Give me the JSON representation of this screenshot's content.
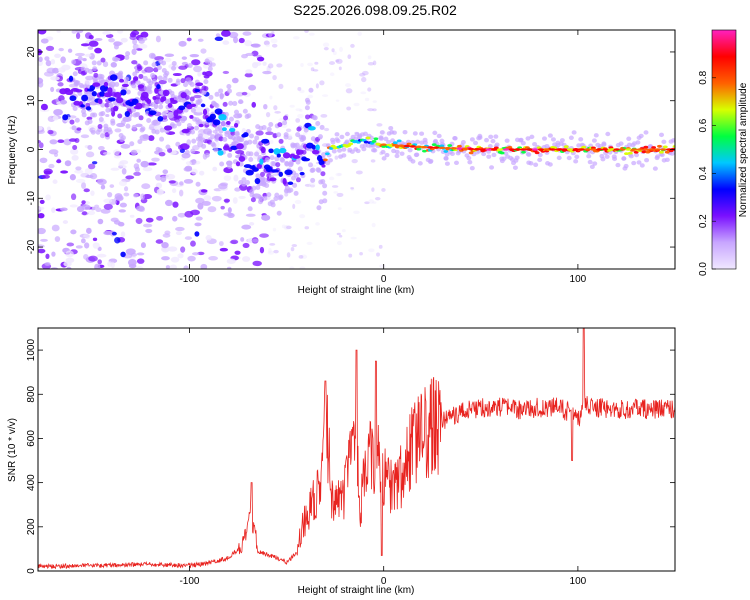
{
  "title": "S225.2026.098.09.25.R02",
  "chart_data": [
    {
      "type": "heatmap",
      "xlabel": "Height of straight line (km)",
      "ylabel": "Frequency (Hz)",
      "xlim": [
        -178,
        150
      ],
      "ylim": [
        -24.5,
        24.5
      ],
      "x_ticks": [
        "-100",
        "0",
        "100"
      ],
      "y_ticks": [
        "-20",
        "-10",
        "0",
        "10",
        "20"
      ],
      "colorbar": {
        "label": "Normalized spectral amplitude",
        "range": [
          0,
          1
        ],
        "ticks": [
          "0.0",
          "0.2",
          "0.4",
          "0.6",
          "0.8"
        ],
        "colors": [
          "#f0e8ff",
          "#c8a6ff",
          "#7a10ff",
          "#0000ff",
          "#00c8ff",
          "#00ff40",
          "#d8ff00",
          "#ff6000",
          "#ff0000",
          "#ff20c0"
        ]
      },
      "ridge_center_hz": [
        {
          "x": -140,
          "y": 11
        },
        {
          "x": -115,
          "y": 9
        },
        {
          "x": -95,
          "y": 8
        },
        {
          "x": -85,
          "y": 6
        },
        {
          "x": -75,
          "y": 1
        },
        {
          "x": -65,
          "y": -3
        },
        {
          "x": -55,
          "y": -5
        },
        {
          "x": -45,
          "y": -3
        },
        {
          "x": -38,
          "y": 4
        },
        {
          "x": -32,
          "y": -4
        },
        {
          "x": -28,
          "y": 0
        },
        {
          "x": -18,
          "y": 1
        },
        {
          "x": -10,
          "y": 2
        },
        {
          "x": 0,
          "y": 1
        },
        {
          "x": 20,
          "y": 0.5
        },
        {
          "x": 50,
          "y": 0
        },
        {
          "x": 100,
          "y": 0
        },
        {
          "x": 150,
          "y": 0
        }
      ]
    },
    {
      "type": "line",
      "xlabel": "Height of straight line (km)",
      "ylabel": "SNR (10 * v/v)",
      "xlim": [
        -178,
        150
      ],
      "ylim": [
        0,
        1100
      ],
      "x_ticks": [
        "-100",
        "0",
        "100"
      ],
      "y_ticks": [
        "0",
        "200",
        "400",
        "600",
        "800",
        "1000"
      ],
      "series": [
        {
          "color": "#e8231f",
          "envelope": [
            [
              -178,
              20
            ],
            [
              -150,
              25
            ],
            [
              -120,
              30
            ],
            [
              -100,
              25
            ],
            [
              -90,
              35
            ],
            [
              -80,
              60
            ],
            [
              -72,
              120
            ],
            [
              -68,
              280
            ],
            [
              -65,
              90
            ],
            [
              -58,
              70
            ],
            [
              -50,
              40
            ],
            [
              -45,
              80
            ],
            [
              -42,
              200
            ],
            [
              -38,
              280
            ],
            [
              -32,
              380
            ],
            [
              -30,
              700
            ],
            [
              -26,
              280
            ],
            [
              -20,
              360
            ],
            [
              -15,
              600
            ],
            [
              -12,
              300
            ],
            [
              -8,
              520
            ],
            [
              -3,
              500
            ],
            [
              0,
              420
            ],
            [
              5,
              380
            ],
            [
              10,
              450
            ],
            [
              15,
              560
            ],
            [
              20,
              620
            ],
            [
              25,
              650
            ],
            [
              30,
              680
            ],
            [
              40,
              720
            ],
            [
              50,
              740
            ],
            [
              60,
              740
            ],
            [
              70,
              730
            ],
            [
              80,
              740
            ],
            [
              90,
              740
            ],
            [
              95,
              720
            ],
            [
              100,
              680
            ],
            [
              103,
              760
            ],
            [
              108,
              740
            ],
            [
              120,
              730
            ],
            [
              130,
              735
            ],
            [
              140,
              730
            ],
            [
              150,
              740
            ]
          ],
          "spikes": [
            [
              -68,
              400
            ],
            [
              -30,
              860
            ],
            [
              -14,
              1000
            ],
            [
              -4,
              950
            ],
            [
              -1,
              70
            ],
            [
              97,
              500
            ],
            [
              103,
              1100
            ]
          ]
        }
      ]
    }
  ]
}
